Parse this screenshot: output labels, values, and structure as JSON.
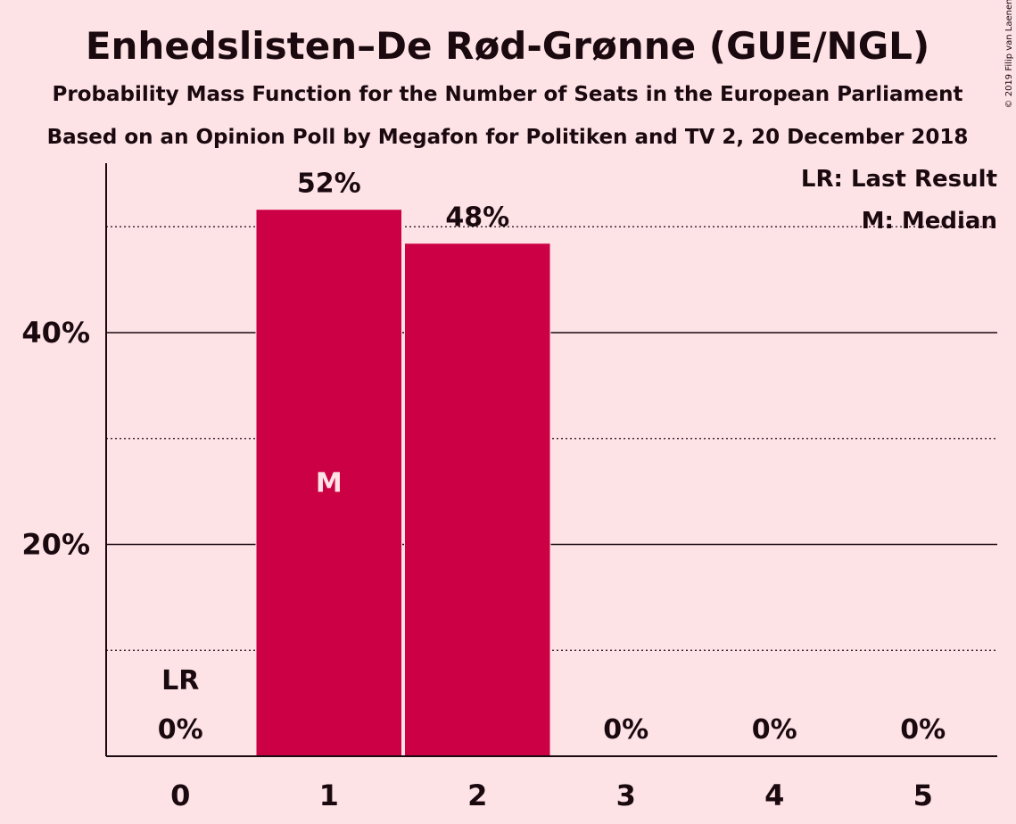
{
  "chart_data": {
    "type": "bar",
    "title": "Enhedslisten–De Rød-Grønne (GUE/NGL)",
    "subtitle": "Probability Mass Function for the Number of Seats in the European Parliament",
    "subtitle2": "Based on an Opinion Poll by Megafon for Politiken and TV 2, 20 December 2018",
    "copyright": "© 2019 Filip van Laenen",
    "categories": [
      "0",
      "1",
      "2",
      "3",
      "4",
      "5"
    ],
    "values": [
      0,
      51.6,
      48.4,
      0,
      0,
      0
    ],
    "data_labels": [
      "0%",
      "52%",
      "48%",
      "0%",
      "0%",
      "0%"
    ],
    "ylim": [
      0,
      56
    ],
    "yticks": [
      {
        "value": 20,
        "label": "20%"
      },
      {
        "value": 40,
        "label": "40%"
      }
    ],
    "minor_gridlines": [
      10,
      30,
      50
    ],
    "last_result_index": 0,
    "last_result_label": "LR",
    "median_index": 1,
    "median_label": "M",
    "legend": {
      "lr": "LR: Last Result",
      "median": "M: Median",
      "position": "top-right"
    },
    "colors": {
      "bar": "#cc0044",
      "background": "#fde2e6",
      "text": "#1a0a10",
      "median_text": "#fde2e6"
    }
  }
}
